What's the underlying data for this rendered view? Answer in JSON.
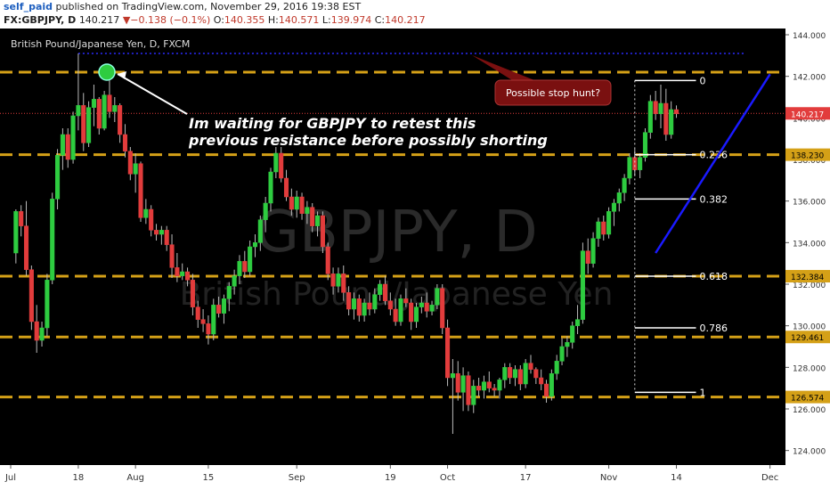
{
  "header": {
    "user": "self_paid",
    "published": " published on TradingView.com, November 29, 2016 19:38 EST",
    "symbol": "FX:GBPJPY, D",
    "last": "140.217",
    "arrow": "▼",
    "change": "−0.138 (−0.1%)",
    "o_label": "O:",
    "o_val": "140.355",
    "h_label": "H:",
    "h_val": "140.571",
    "l_label": "L:",
    "l_val": "139.974",
    "c_label": "C:",
    "c_val": "140.217"
  },
  "chart_data": {
    "type": "candlestick",
    "title": "British Pound/Japanese Yen, D, FXCM",
    "watermark": "GBPJPY, D",
    "watermark_sub": "British Pound/Japanese Yen",
    "ylim": [
      123.3,
      144.3
    ],
    "y_ticks": [
      "124.000",
      "126.000",
      "128.000",
      "130.000",
      "132.000",
      "134.000",
      "136.000",
      "138.000",
      "140.000",
      "142.000",
      "144.000"
    ],
    "x_labels": [
      {
        "label": "Jul",
        "day": 0
      },
      {
        "label": "18",
        "day": 13
      },
      {
        "label": "Aug",
        "day": 24
      },
      {
        "label": "15",
        "day": 38
      },
      {
        "label": "Sep",
        "day": 55
      },
      {
        "label": "19",
        "day": 73
      },
      {
        "label": "Oct",
        "day": 84
      },
      {
        "label": "17",
        "day": 99
      },
      {
        "label": "Nov",
        "day": 115
      },
      {
        "label": "14",
        "day": 128
      },
      {
        "label": "Dec",
        "day": 146
      }
    ],
    "candles": [
      [
        1,
        133.5,
        135.6,
        133,
        135.5
      ],
      [
        2,
        135.5,
        135.8,
        134.3,
        134.8
      ],
      [
        3,
        134.8,
        136,
        132.4,
        132.7
      ],
      [
        4,
        132.7,
        132.9,
        129.8,
        130.2
      ],
      [
        5,
        130.2,
        131,
        128.7,
        129.3
      ],
      [
        6,
        129.3,
        130.2,
        129,
        129.9
      ],
      [
        7,
        129.9,
        132.5,
        129.5,
        132.2
      ],
      [
        8,
        132.2,
        136.4,
        132,
        136.1
      ],
      [
        9,
        136.1,
        138.5,
        135.6,
        138.2
      ],
      [
        10,
        138.2,
        139.5,
        137.5,
        139.2
      ],
      [
        11,
        139.2,
        139.5,
        137.6,
        138
      ],
      [
        12,
        138,
        140.3,
        137.8,
        140.1
      ],
      [
        13,
        140.1,
        143.1,
        139.4,
        140.6
      ],
      [
        14,
        140.6,
        141.2,
        138.4,
        138.8
      ],
      [
        15,
        138.8,
        140.8,
        138.6,
        140.5
      ],
      [
        16,
        140.5,
        141.6,
        139.6,
        140.9
      ],
      [
        17,
        140.9,
        141,
        139.2,
        139.5
      ],
      [
        18,
        139.5,
        141.3,
        139.4,
        141.1
      ],
      [
        19,
        141.1,
        141.9,
        140,
        140.3
      ],
      [
        20,
        140.3,
        141,
        139.8,
        140.6
      ],
      [
        21,
        140.6,
        140.7,
        138.8,
        139.2
      ],
      [
        22,
        139.2,
        139.7,
        138.1,
        138.4
      ],
      [
        23,
        138.4,
        138.6,
        137,
        137.3
      ],
      [
        24,
        137.3,
        138.3,
        136.4,
        137.8
      ],
      [
        25,
        137.8,
        137.9,
        135,
        135.2
      ],
      [
        26,
        135.2,
        136.1,
        134.9,
        135.6
      ],
      [
        27,
        135.6,
        135.8,
        134.3,
        134.6
      ],
      [
        28,
        134.6,
        134.9,
        134.1,
        134.4
      ],
      [
        29,
        134.4,
        134.8,
        133.9,
        134.6
      ],
      [
        30,
        134.6,
        134.8,
        133.6,
        133.9
      ],
      [
        31,
        133.9,
        134.4,
        132.3,
        132.8
      ],
      [
        32,
        132.8,
        133.5,
        132.1,
        132.4
      ],
      [
        33,
        132.4,
        133,
        132.2,
        132.6
      ],
      [
        34,
        132.6,
        132.8,
        131.9,
        132.2
      ],
      [
        35,
        132.2,
        132.5,
        130.5,
        130.9
      ],
      [
        36,
        130.9,
        131.2,
        129.9,
        130.3
      ],
      [
        37,
        130.3,
        130.8,
        129.7,
        130.1
      ],
      [
        38,
        130.1,
        130.5,
        129.1,
        129.6
      ],
      [
        39,
        129.6,
        131.3,
        129.3,
        131
      ],
      [
        40,
        131,
        131.4,
        130.4,
        130.6
      ],
      [
        41,
        130.6,
        131.5,
        130.1,
        131.3
      ],
      [
        42,
        131.3,
        132.1,
        130.7,
        131.9
      ],
      [
        43,
        131.9,
        132.7,
        131.5,
        132.4
      ],
      [
        44,
        132.4,
        133.4,
        132,
        133.1
      ],
      [
        45,
        133.1,
        133.6,
        132.3,
        132.6
      ],
      [
        46,
        132.6,
        134.1,
        132.4,
        133.8
      ],
      [
        47,
        133.8,
        134.4,
        133.3,
        134
      ],
      [
        48,
        134,
        135.3,
        133.6,
        135.1
      ],
      [
        49,
        135.1,
        136.2,
        134.5,
        135.9
      ],
      [
        50,
        135.9,
        137.6,
        135.5,
        137.4
      ],
      [
        51,
        137.4,
        138.6,
        137.1,
        138.3
      ],
      [
        52,
        138.3,
        138.6,
        136.9,
        137.1
      ],
      [
        53,
        137.1,
        137.5,
        136,
        136.2
      ],
      [
        54,
        136.2,
        136.6,
        135.3,
        135.6
      ],
      [
        55,
        135.6,
        136.5,
        135.2,
        136.2
      ],
      [
        56,
        136.2,
        136.4,
        135.1,
        135.4
      ],
      [
        57,
        135.4,
        136,
        134.9,
        135.7
      ],
      [
        58,
        135.7,
        135.9,
        134.5,
        134.8
      ],
      [
        59,
        134.8,
        135.5,
        134.3,
        135.3
      ],
      [
        60,
        135.3,
        135.5,
        133.5,
        133.8
      ],
      [
        61,
        133.8,
        134,
        132.2,
        132.5
      ],
      [
        62,
        132.5,
        132.8,
        131.5,
        131.9
      ],
      [
        63,
        131.9,
        132.8,
        131.6,
        132.5
      ],
      [
        64,
        132.5,
        132.9,
        131.2,
        131.6
      ],
      [
        65,
        131.6,
        131.9,
        130.5,
        130.8
      ],
      [
        66,
        130.8,
        131.6,
        130.3,
        131.3
      ],
      [
        67,
        131.3,
        131.5,
        130.2,
        130.5
      ],
      [
        68,
        130.5,
        131.3,
        130.2,
        131.1
      ],
      [
        69,
        131.1,
        131.6,
        130.5,
        130.8
      ],
      [
        70,
        130.8,
        131.8,
        130.6,
        131.5
      ],
      [
        71,
        131.5,
        132.2,
        131.2,
        132
      ],
      [
        72,
        132,
        132.4,
        131,
        131.2
      ],
      [
        73,
        131.2,
        131.6,
        130.5,
        130.8
      ],
      [
        74,
        130.8,
        131.3,
        130,
        130.2
      ],
      [
        75,
        130.2,
        131.5,
        130,
        131.3
      ],
      [
        76,
        131.3,
        131.8,
        130.9,
        131.1
      ],
      [
        77,
        131.1,
        131.3,
        129.8,
        130.2
      ],
      [
        78,
        130.2,
        131.1,
        129.9,
        130.9
      ],
      [
        79,
        130.9,
        131.4,
        130.6,
        131.1
      ],
      [
        80,
        131.1,
        131.6,
        130.4,
        130.7
      ],
      [
        81,
        130.7,
        131.2,
        130.5,
        131
      ],
      [
        82,
        131,
        132,
        130.8,
        131.8
      ],
      [
        83,
        131.8,
        132,
        129.6,
        129.9
      ],
      [
        84,
        129.9,
        130.3,
        127.1,
        127.5
      ],
      [
        85,
        127.5,
        128.4,
        124.8,
        127.7
      ],
      [
        86,
        127.7,
        128.3,
        126.4,
        126.8
      ],
      [
        87,
        126.8,
        128,
        125.9,
        127.6
      ],
      [
        88,
        127.6,
        127.8,
        125.9,
        126.2
      ],
      [
        89,
        126.2,
        127.4,
        125.8,
        127.1
      ],
      [
        90,
        127.1,
        127.5,
        126.6,
        126.9
      ],
      [
        91,
        126.9,
        127.6,
        126.5,
        127.3
      ],
      [
        92,
        127.3,
        127.8,
        126.8,
        127
      ],
      [
        93,
        127,
        127.2,
        126.6,
        126.9
      ],
      [
        94,
        126.9,
        127.5,
        126.5,
        127.4
      ],
      [
        95,
        127.4,
        128.2,
        127,
        128
      ],
      [
        96,
        128,
        128.2,
        127.2,
        127.5
      ],
      [
        97,
        127.5,
        128.1,
        127.1,
        127.9
      ],
      [
        98,
        127.9,
        128.1,
        126.9,
        127.2
      ],
      [
        99,
        127.2,
        128.4,
        127,
        128.2
      ],
      [
        100,
        128.2,
        128.6,
        127.7,
        127.9
      ],
      [
        101,
        127.9,
        128,
        127.2,
        127.5
      ],
      [
        102,
        127.5,
        127.9,
        126.9,
        127.2
      ],
      [
        103,
        127.2,
        127.4,
        126.3,
        126.6
      ],
      [
        104,
        126.6,
        127.9,
        126.4,
        127.7
      ],
      [
        105,
        127.7,
        128.6,
        127.4,
        128.3
      ],
      [
        106,
        128.3,
        129.4,
        128.1,
        129
      ],
      [
        107,
        129,
        129.5,
        128.5,
        129.2
      ],
      [
        108,
        129.2,
        130.2,
        128.9,
        130
      ],
      [
        109,
        130,
        131,
        129.6,
        130.3
      ],
      [
        110,
        130.3,
        134,
        130.1,
        133.6
      ],
      [
        111,
        133.6,
        134.2,
        132.5,
        133
      ],
      [
        112,
        133,
        134.5,
        132.8,
        134.2
      ],
      [
        113,
        134.2,
        135.2,
        133.8,
        135
      ],
      [
        114,
        135,
        135.3,
        134.1,
        134.4
      ],
      [
        115,
        134.4,
        135.7,
        134.2,
        135.5
      ],
      [
        116,
        135.5,
        136.1,
        134.8,
        135.9
      ],
      [
        117,
        135.9,
        136.6,
        135.5,
        136.4
      ],
      [
        118,
        136.4,
        137.3,
        136,
        137.1
      ],
      [
        119,
        137.1,
        138.3,
        136.8,
        138.1
      ],
      [
        120,
        138.1,
        138.5,
        137.2,
        137.5
      ],
      [
        121,
        137.5,
        138.3,
        137.1,
        138.1
      ],
      [
        122,
        138.1,
        139.5,
        137.9,
        139.3
      ],
      [
        123,
        139.3,
        141.1,
        139,
        140.8
      ],
      [
        124,
        140.8,
        141.3,
        139.9,
        140.2
      ],
      [
        125,
        140.2,
        141.6,
        139.5,
        140.7
      ],
      [
        126,
        140.7,
        141.4,
        138.9,
        139.2
      ],
      [
        127,
        139.2,
        140.8,
        139,
        140.4
      ],
      [
        128,
        140.4,
        140.6,
        140,
        140.2
      ]
    ],
    "resistance_levels": [
      142.2,
      138.23,
      132.384,
      129.461,
      126.574
    ],
    "dotted_high": 143.1,
    "trendline": {
      "from": [
        124,
        133.5
      ],
      "to": [
        146,
        142.1
      ]
    },
    "fib_levels": [
      {
        "label": "0",
        "price": 141.8
      },
      {
        "label": "0.236",
        "price": 138.23
      },
      {
        "label": "0.382",
        "price": 136.1
      },
      {
        "label": "0.618",
        "price": 132.384
      },
      {
        "label": "0.786",
        "price": 129.9
      },
      {
        "label": "1",
        "price": 126.8
      }
    ],
    "fib_from_day": 123,
    "fib_to_day": 128,
    "price_tags": [
      {
        "text": "140.217",
        "price": 140.217,
        "kind": "last"
      },
      {
        "text": "138.230",
        "price": 138.23,
        "kind": "level"
      },
      {
        "text": "132.384",
        "price": 132.384,
        "kind": "level"
      },
      {
        "text": "129.461",
        "price": 129.461,
        "kind": "level"
      },
      {
        "text": "126.574",
        "price": 126.574,
        "kind": "level"
      }
    ],
    "annotations": {
      "main_text_line1": "Im waiting for GBPJPY to retest this",
      "main_text_line2": "previous resistance before possibly shorting",
      "callout": "Possible stop hunt?"
    },
    "colors": {
      "bull": "#2ecc40",
      "bear": "#e23c3c",
      "level": "#d4a017",
      "dotted": "#2a2aff",
      "trend": "#1a1aff",
      "callout": "#7a1010"
    }
  }
}
